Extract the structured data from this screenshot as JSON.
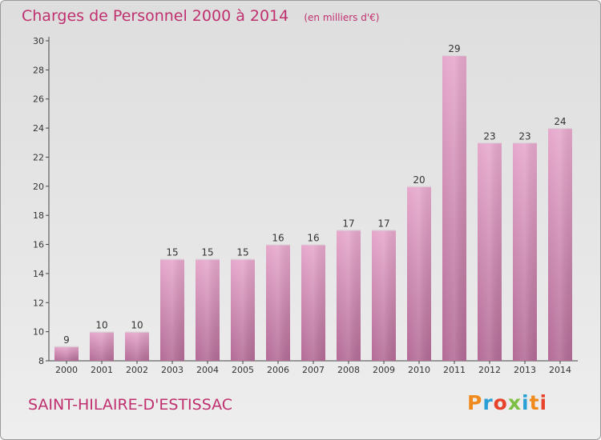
{
  "header": {
    "title": "Charges de Personnel 2000 à 2014",
    "subtitle": "(en milliers d'€)"
  },
  "footer": {
    "location": "SAINT-HILAIRE-D'ESTISSAC",
    "logo_text": "Proxiti",
    "logo_colors": [
      "#f08a1c",
      "#2a9fd6",
      "#e8432b",
      "#7cc043",
      "#2a9fd6",
      "#f08a1c",
      "#e8432b"
    ]
  },
  "chart_data": {
    "type": "bar",
    "title": "Charges de Personnel 2000 à 2014",
    "subtitle": "(en milliers d'€)",
    "categories": [
      "2000",
      "2001",
      "2002",
      "2003",
      "2004",
      "2005",
      "2006",
      "2007",
      "2008",
      "2009",
      "2010",
      "2011",
      "2012",
      "2013",
      "2014"
    ],
    "values": [
      9,
      10,
      10,
      15,
      15,
      15,
      16,
      16,
      17,
      17,
      20,
      29,
      23,
      23,
      24
    ],
    "xlabel": "",
    "ylabel": "",
    "ylim": [
      8,
      30
    ],
    "yticks": [
      8,
      10,
      12,
      14,
      16,
      18,
      20,
      22,
      24,
      26,
      28,
      30
    ],
    "grid": false,
    "colors": {
      "bar_top": "#e6a8cc",
      "bar_bottom": "#b36b96",
      "text": "#c0306f"
    }
  }
}
